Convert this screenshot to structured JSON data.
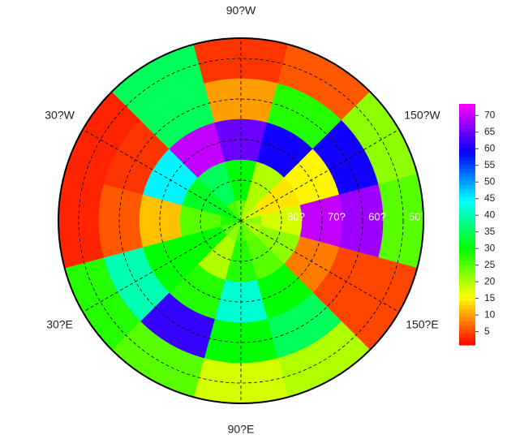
{
  "map": {
    "sector_centers": [
      180,
      150,
      120,
      90,
      60,
      30,
      0,
      -30,
      -60,
      -90,
      -120,
      -150
    ],
    "band_edges": [
      45,
      55,
      65,
      75,
      85,
      90
    ],
    "values": [
      [
        25,
        5,
        20,
        18,
        25,
        28,
        3,
        3,
        35,
        4,
        6,
        22
      ],
      [
        68,
        5,
        35,
        30,
        62,
        40,
        6,
        4,
        35,
        10,
        28,
        60
      ],
      [
        70,
        8,
        30,
        42,
        28,
        30,
        12,
        45,
        70,
        65,
        60,
        15
      ],
      [
        18,
        22,
        25,
        28,
        20,
        30,
        25,
        32,
        35,
        30,
        20,
        14
      ],
      [
        22,
        20,
        24,
        26,
        22,
        25,
        28,
        30,
        26,
        24,
        20,
        18
      ]
    ],
    "lon_labels": [
      {
        "value": -90,
        "label": "90?W"
      },
      {
        "value": -30,
        "label": "30?W"
      },
      {
        "value": -150,
        "label": "150?W"
      },
      {
        "value": 30,
        "label": "30?E"
      },
      {
        "value": 150,
        "label": "150?E"
      },
      {
        "value": 90,
        "label": "90?E"
      }
    ],
    "lat_circles": [
      {
        "value": 80,
        "label": "80?"
      },
      {
        "value": 70,
        "label": "70?"
      },
      {
        "value": 60,
        "label": "60?"
      },
      {
        "value": 50,
        "label": "50?"
      }
    ],
    "clim": [
      1,
      73.5
    ],
    "colorbar_ticks": [
      5,
      10,
      15,
      20,
      25,
      30,
      35,
      40,
      45,
      50,
      55,
      60,
      65,
      70
    ]
  }
}
